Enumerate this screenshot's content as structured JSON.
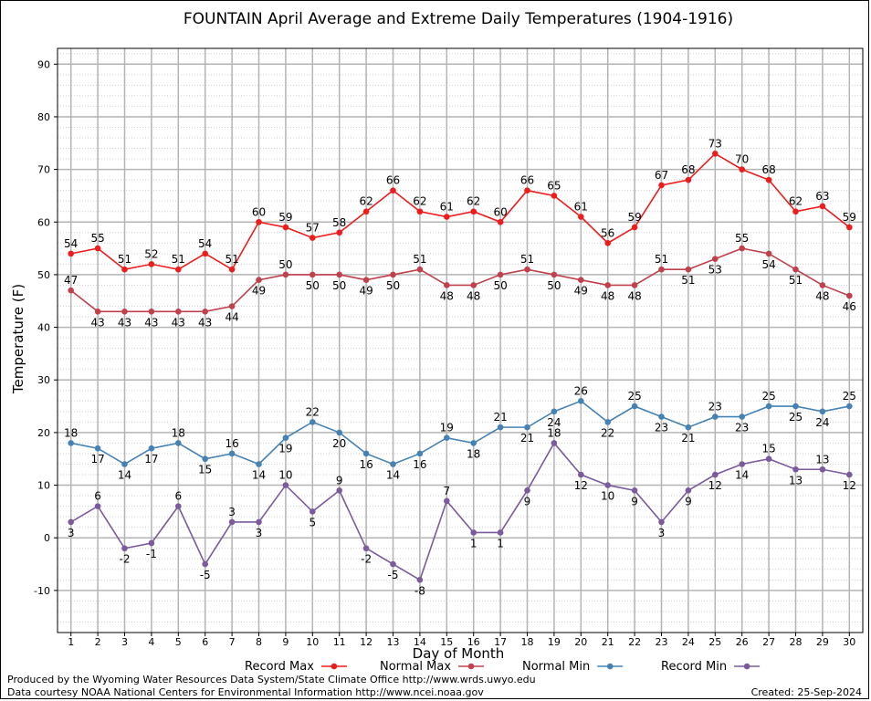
{
  "chart_data": {
    "type": "line",
    "title": "FOUNTAIN April Average and Extreme Daily Temperatures (1904-1916)",
    "xlabel": "Day of Month",
    "ylabel": "Temperature (F)",
    "x": [
      1,
      2,
      3,
      4,
      5,
      6,
      7,
      8,
      9,
      10,
      11,
      12,
      13,
      14,
      15,
      16,
      17,
      18,
      19,
      20,
      21,
      22,
      23,
      24,
      25,
      26,
      27,
      28,
      29,
      30
    ],
    "xlim": [
      0.5,
      30.5
    ],
    "ylim": [
      -18,
      93
    ],
    "yticks": [
      -10,
      0,
      10,
      20,
      30,
      40,
      50,
      60,
      70,
      80,
      90
    ],
    "grid": true,
    "legend_position": "bottom",
    "series": [
      {
        "name": "Record Max",
        "color": "#ee1c1c",
        "label_position": "above",
        "values": [
          54,
          55,
          51,
          52,
          51,
          54,
          51,
          60,
          59,
          57,
          58,
          62,
          66,
          62,
          61,
          62,
          60,
          66,
          65,
          61,
          56,
          59,
          67,
          68,
          73,
          70,
          68,
          62,
          63,
          59
        ]
      },
      {
        "name": "Normal Max",
        "color": "#c0404b",
        "label_position": "mixed",
        "values": [
          47,
          43,
          43,
          43,
          43,
          43,
          44,
          49,
          50,
          50,
          50,
          49,
          50,
          51,
          48,
          48,
          50,
          51,
          50,
          49,
          48,
          48,
          51,
          51,
          53,
          55,
          54,
          51,
          48,
          46
        ]
      },
      {
        "name": "Normal Min",
        "color": "#4682b4",
        "label_position": "mixed",
        "values": [
          18,
          17,
          14,
          17,
          18,
          15,
          16,
          14,
          19,
          22,
          20,
          16,
          14,
          16,
          19,
          18,
          21,
          21,
          24,
          26,
          22,
          25,
          23,
          21,
          23,
          23,
          25,
          25,
          24,
          25
        ]
      },
      {
        "name": "Record Min",
        "color": "#7b5a9e",
        "label_position": "mixed",
        "values": [
          3,
          6,
          -2,
          -1,
          6,
          -5,
          3,
          3,
          10,
          5,
          9,
          -2,
          -5,
          -8,
          7,
          1,
          1,
          9,
          18,
          12,
          10,
          9,
          3,
          9,
          12,
          14,
          15,
          13,
          13,
          12
        ]
      }
    ]
  },
  "footer": {
    "credit_line1": "Produced by the Wyoming Water Resources Data System/State Climate Office http://www.wrds.uwyo.edu",
    "credit_line2": "Data courtesy NOAA National Centers for Environmental Information http://www.ncei.noaa.gov",
    "created": "Created:  25-Sep-2024"
  }
}
